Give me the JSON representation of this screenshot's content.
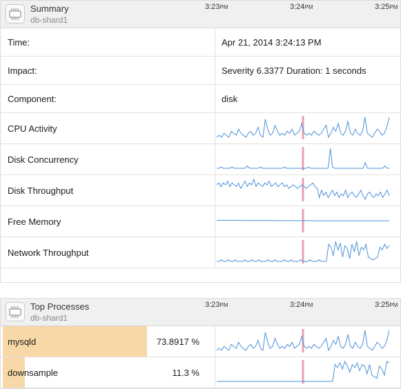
{
  "colors": {
    "spark_line": "#4a90d9",
    "marker": "#e8a0b0",
    "process_bar": "#f8d8a7",
    "header_bg": "#f0f0f0"
  },
  "summary": {
    "icon": "chip-icon",
    "title": "Summary",
    "host": "db-shard1",
    "ticks": [
      {
        "time": "3:23",
        "ampm": "PM"
      },
      {
        "time": "3:24",
        "ampm": "PM"
      },
      {
        "time": "3:25",
        "ampm": "PM"
      }
    ],
    "rows": [
      {
        "label": "Time:",
        "value": "Apr 21, 2014 3:24:13 PM"
      },
      {
        "label": "Impact:",
        "value": "Severity 6.3377 Duration: 1 seconds"
      },
      {
        "label": "Component:",
        "value": "disk"
      }
    ],
    "metrics": [
      {
        "label": "CPU Activity",
        "series": [
          4,
          5,
          4,
          6,
          5,
          4,
          7,
          6,
          5,
          8,
          6,
          5,
          4,
          6,
          7,
          5,
          6,
          9,
          5,
          4,
          13,
          8,
          5,
          6,
          10,
          7,
          5,
          6,
          5,
          7,
          6,
          8,
          5,
          6,
          7,
          11,
          6,
          5,
          6,
          5,
          7,
          6,
          5,
          6,
          8,
          10,
          4,
          6,
          9,
          7,
          11,
          6,
          5,
          7,
          12,
          6,
          5,
          8,
          6,
          5,
          7,
          14,
          6,
          5,
          4,
          6,
          8,
          7,
          5,
          6,
          9,
          14
        ]
      },
      {
        "label": "Disk Concurrency",
        "series": [
          1,
          1,
          2,
          1,
          1,
          1,
          1,
          2,
          1,
          1,
          1,
          1,
          1,
          1,
          3,
          1,
          1,
          1,
          1,
          1,
          2,
          1,
          1,
          1,
          1,
          1,
          1,
          1,
          1,
          1,
          1,
          2,
          1,
          1,
          1,
          1,
          1,
          1,
          1,
          1,
          1,
          1,
          2,
          1,
          1,
          1,
          1,
          1,
          1,
          1,
          1,
          1,
          18,
          2,
          1,
          1,
          1,
          1,
          1,
          1,
          1,
          1,
          1,
          1,
          1,
          1,
          1,
          1,
          6,
          1,
          1,
          1,
          1,
          1,
          1,
          1,
          1,
          3,
          1,
          1
        ]
      },
      {
        "label": "Disk Throughput",
        "series": [
          11,
          12,
          10,
          12,
          11,
          13,
          10,
          12,
          11,
          10,
          12,
          9,
          11,
          13,
          10,
          12,
          11,
          14,
          10,
          12,
          11,
          10,
          12,
          11,
          13,
          10,
          11,
          12,
          10,
          11,
          12,
          10,
          11,
          9,
          10,
          11,
          10,
          9,
          10,
          11,
          10,
          9,
          10,
          11,
          12,
          10,
          9,
          4,
          8,
          5,
          7,
          4,
          6,
          8,
          5,
          7,
          4,
          6,
          5,
          8,
          4,
          6,
          7,
          5,
          4,
          6,
          8,
          5,
          3,
          6,
          7,
          5,
          4,
          6,
          5,
          7,
          4,
          6,
          8,
          5
        ]
      },
      {
        "label": "Free Memory",
        "series": [
          10,
          10,
          10,
          10,
          10,
          10,
          10,
          10,
          10,
          10,
          9.8,
          9.8,
          9.8,
          9.8,
          9.8,
          9.8,
          9.8,
          9.8,
          9.8,
          9.8,
          9.7,
          9.7,
          9.7,
          9.7,
          9.7,
          9.7,
          9.7,
          9.7,
          9.7,
          9.7,
          9.7,
          9.7,
          9.7,
          9.6,
          9.6,
          9.6,
          9.6,
          9.6,
          9.6,
          9.6,
          9.6,
          9.6,
          9.6,
          9.6,
          9.6,
          9.6,
          9.6,
          9.6,
          9.6,
          9.6,
          9.6,
          9.6,
          9.6,
          9.6,
          9.6,
          9.6,
          9.6,
          9.6,
          9.6,
          9.6
        ]
      },
      {
        "label": "Network Throughput",
        "series": [
          2,
          2,
          3,
          2,
          2,
          3,
          2,
          2,
          3,
          2,
          2,
          2,
          3,
          2,
          2,
          3,
          2,
          2,
          3,
          2,
          2,
          2,
          3,
          2,
          2,
          3,
          2,
          2,
          2,
          3,
          2,
          2,
          3,
          2,
          2,
          2,
          3,
          2,
          2,
          2,
          3,
          2,
          2,
          2,
          3,
          2,
          2,
          2,
          14,
          12,
          6,
          16,
          10,
          15,
          5,
          13,
          11,
          4,
          14,
          9,
          16,
          6,
          12,
          10,
          14,
          5,
          4,
          3,
          4,
          5,
          12,
          10,
          14,
          11,
          13
        ]
      }
    ],
    "marker_position": 0.49
  },
  "processes": {
    "icon": "chip-icon",
    "title": "Top Processes",
    "host": "db-shard1",
    "ticks": [
      {
        "time": "3:23",
        "ampm": "PM"
      },
      {
        "time": "3:24",
        "ampm": "PM"
      },
      {
        "time": "3:25",
        "ampm": "PM"
      }
    ],
    "items": [
      {
        "name": "mysqld",
        "percent": "73.8917 %",
        "share": 0.739,
        "series": [
          4,
          5,
          4,
          6,
          5,
          4,
          7,
          6,
          5,
          8,
          6,
          5,
          4,
          6,
          7,
          5,
          6,
          9,
          5,
          4,
          13,
          8,
          5,
          6,
          10,
          7,
          5,
          6,
          5,
          7,
          6,
          8,
          5,
          6,
          7,
          11,
          6,
          5,
          6,
          5,
          7,
          6,
          5,
          6,
          8,
          10,
          4,
          6,
          9,
          7,
          11,
          6,
          5,
          7,
          12,
          6,
          5,
          8,
          6,
          5,
          7,
          14,
          6,
          5,
          4,
          6,
          8,
          7,
          5,
          6,
          9,
          14
        ]
      },
      {
        "name": "downsample",
        "percent": "11.3 %",
        "share": 0.113,
        "series": [
          1,
          1,
          1,
          1,
          1,
          1,
          1,
          1,
          1,
          1,
          1,
          1,
          1,
          1,
          1,
          1,
          1,
          1,
          1,
          1,
          1,
          1,
          1,
          1,
          1,
          1,
          1,
          1,
          1,
          1,
          1,
          1,
          1,
          1,
          1,
          1,
          1,
          1,
          1,
          1,
          1,
          1,
          1,
          1,
          1,
          1,
          1,
          1,
          12,
          10,
          13,
          9,
          14,
          11,
          7,
          12,
          10,
          13,
          8,
          12,
          11,
          6,
          12,
          5,
          4,
          3,
          11,
          9,
          5,
          14,
          13
        ]
      }
    ]
  }
}
